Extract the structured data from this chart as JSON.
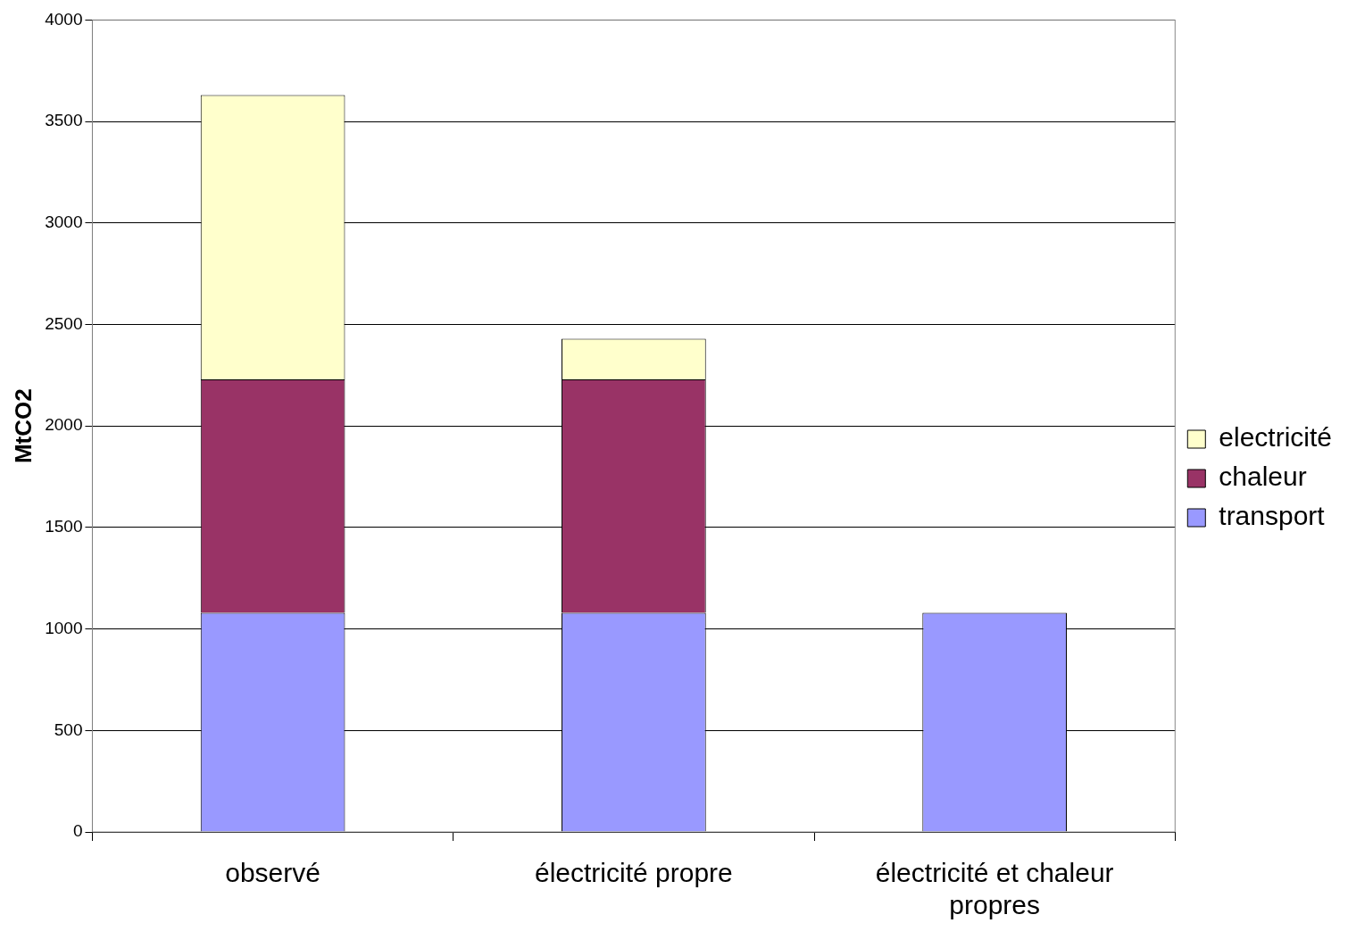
{
  "chart_data": {
    "type": "bar",
    "stacked": true,
    "ylabel": "MtCO2",
    "categories": [
      "observé",
      "électricité propre",
      "électricité et chaleur propres"
    ],
    "series": [
      {
        "name": "transport",
        "color": "#9999ff",
        "values": [
          1080,
          1080,
          1080
        ]
      },
      {
        "name": "chaleur",
        "color": "#993366",
        "values": [
          1150,
          1150,
          0
        ]
      },
      {
        "name": "electricité",
        "color": "#ffffcc",
        "values": [
          1400,
          200,
          0
        ]
      }
    ],
    "ylim": [
      0,
      4000
    ],
    "yticks": [
      0,
      500,
      1000,
      1500,
      2000,
      2500,
      3000,
      3500,
      4000
    ],
    "grid": "y",
    "legend": "right"
  }
}
